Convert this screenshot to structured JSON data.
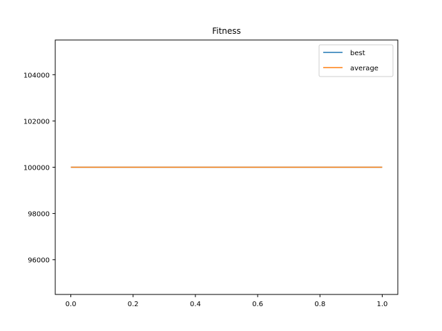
{
  "chart_data": {
    "type": "line",
    "title": "Fitness",
    "xlabel": "",
    "ylabel": "",
    "xlim": [
      -0.05,
      1.05
    ],
    "ylim": [
      94500,
      105500
    ],
    "x_ticks": [
      0.0,
      0.2,
      0.4,
      0.6,
      0.8,
      1.0
    ],
    "x_tick_labels": [
      "0.0",
      "0.2",
      "0.4",
      "0.6",
      "0.8",
      "1.0"
    ],
    "y_ticks": [
      96000,
      98000,
      100000,
      102000,
      104000
    ],
    "y_tick_labels": [
      "96000",
      "98000",
      "100000",
      "102000",
      "104000"
    ],
    "grid": false,
    "legend_placement": "top-right",
    "series": [
      {
        "name": "best",
        "color": "#1f77b4",
        "x": [
          0,
          1
        ],
        "y": [
          100000,
          100000
        ]
      },
      {
        "name": "average",
        "color": "#ff7f0e",
        "x": [
          0,
          1
        ],
        "y": [
          100000,
          100000
        ]
      }
    ]
  }
}
